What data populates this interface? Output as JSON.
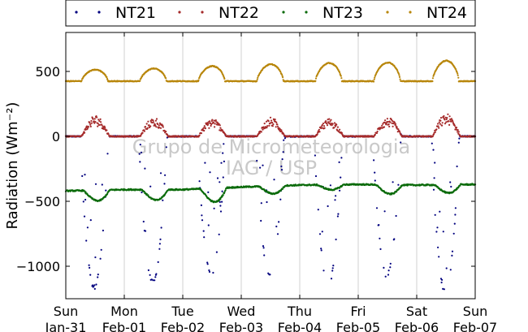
{
  "chart_data": {
    "type": "scatter",
    "ylabel": "Radiation (Wm⁻²)",
    "ylim": [
      -1250,
      800
    ],
    "yticks": [
      500,
      0,
      -500,
      -1000
    ],
    "ytick_labels": [
      "500",
      "0",
      "−500",
      "−1000"
    ],
    "xlim": [
      0,
      7
    ],
    "xticks": [
      {
        "day": "Sun",
        "date": "Jan-31"
      },
      {
        "day": "Mon",
        "date": "Feb-01"
      },
      {
        "day": "Tue",
        "date": "Feb-02"
      },
      {
        "day": "Wed",
        "date": "Feb-03"
      },
      {
        "day": "Thu",
        "date": "Feb-04"
      },
      {
        "day": "Fri",
        "date": "Feb-05"
      },
      {
        "day": "Sat",
        "date": "Feb-06"
      },
      {
        "day": "Sun",
        "date": "Feb-07"
      }
    ],
    "grid": "vertical",
    "legend_position": "top",
    "watermark": [
      "Grupo de Micrometeorologia",
      "IAG / USP"
    ],
    "series": [
      {
        "name": "NT21",
        "color": "#00007f",
        "night_level": 0,
        "daily_min": [
          -1160,
          -1120,
          -1070,
          -1080,
          -1150,
          -1070,
          -1190
        ],
        "day_start_frac": 0.25,
        "day_end_frac": 0.75
      },
      {
        "name": "NT22",
        "color": "#a52a2a",
        "night_level": 0,
        "daily_max": [
          135,
          120,
          115,
          120,
          115,
          120,
          145
        ],
        "day_start_frac": 0.27,
        "day_end_frac": 0.75
      },
      {
        "name": "NT23",
        "color": "#0b6b0b",
        "daily_night_level": [
          -420,
          -410,
          -410,
          -390,
          -375,
          -370,
          -375,
          -370
        ],
        "daily_dip": [
          -515,
          -510,
          -530,
          -455,
          -420,
          -460,
          -450
        ]
      },
      {
        "name": "NT24",
        "color": "#b8860b",
        "night_level": 425,
        "daily_max": [
          520,
          530,
          550,
          565,
          575,
          580,
          595
        ],
        "day_start_frac": 0.27,
        "day_end_frac": 0.72
      }
    ]
  }
}
